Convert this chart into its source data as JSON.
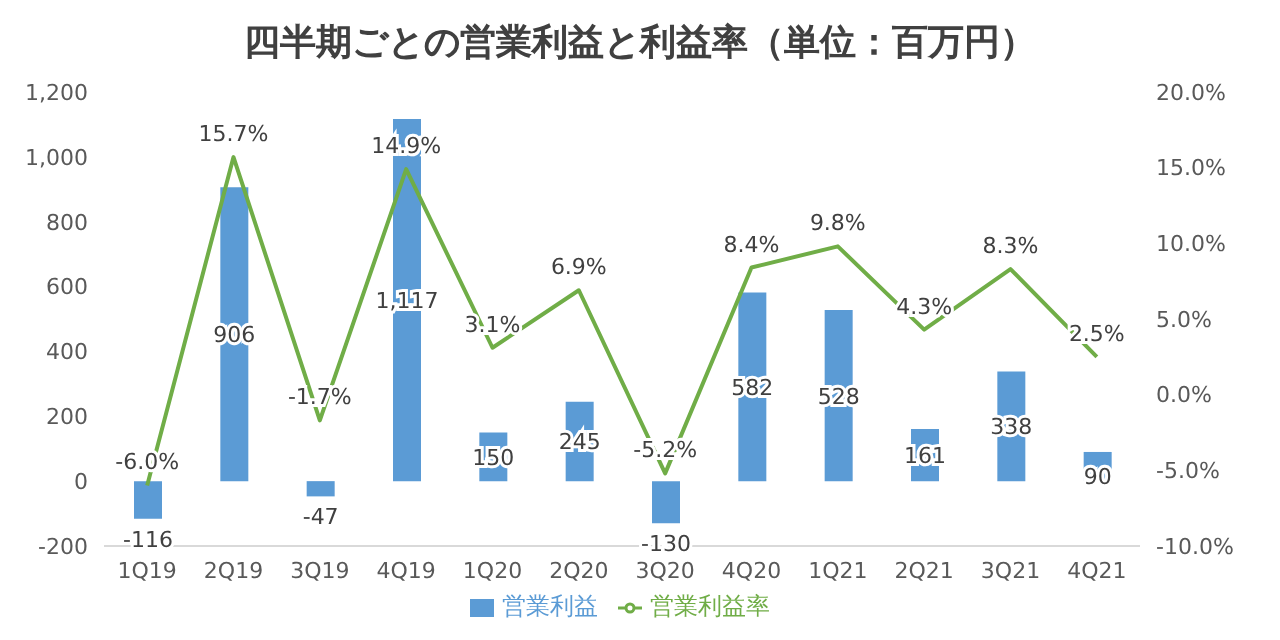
{
  "chart_data": {
    "type": "bar",
    "title": "四半期ごとの営業利益と利益率（単位：百万円）",
    "categories": [
      "1Q19",
      "2Q19",
      "3Q19",
      "4Q19",
      "1Q20",
      "2Q20",
      "3Q20",
      "4Q20",
      "1Q21",
      "2Q21",
      "3Q21",
      "4Q21"
    ],
    "series": [
      {
        "name": "営業利益",
        "color": "#5b9bd5",
        "values": [
          -116,
          906,
          -47,
          1117,
          150,
          245,
          -130,
          582,
          528,
          161,
          338,
          90
        ],
        "value_labels": [
          "-116",
          "906",
          "-47",
          "1,117",
          "150",
          "245",
          "-130",
          "582",
          "528",
          "161",
          "338",
          "90"
        ]
      },
      {
        "name": "営業利益率",
        "type": "line",
        "axis": "y2",
        "color": "#70ad47",
        "values": [
          -6.0,
          15.7,
          -1.7,
          14.9,
          3.1,
          6.9,
          -5.2,
          8.4,
          9.8,
          4.3,
          8.3,
          2.5
        ],
        "value_labels": [
          "-6.0%",
          "15.7%",
          "-1.7%",
          "14.9%",
          "3.1%",
          "6.9%",
          "-5.2%",
          "8.4%",
          "9.8%",
          "4.3%",
          "8.3%",
          "2.5%"
        ]
      }
    ],
    "ylim": [
      -200,
      1200
    ],
    "yticks": [
      -200,
      0,
      200,
      400,
      600,
      800,
      {
        "value": 1000,
        "label": "1,000"
      },
      {
        "value": 1200,
        "label": "1,200"
      }
    ],
    "y2lim": [
      -10,
      20
    ],
    "y2ticks": [
      {
        "value": -10,
        "label": "-10.0%"
      },
      {
        "value": -5,
        "label": "-5.0%"
      },
      {
        "value": 0,
        "label": "0.0%"
      },
      {
        "value": 5,
        "label": "5.0%"
      },
      {
        "value": 10,
        "label": "10.0%"
      },
      {
        "value": 15,
        "label": "15.0%"
      },
      {
        "value": 20,
        "label": "20.0%"
      }
    ],
    "grid": false,
    "legend": "bottom",
    "marker": "none"
  }
}
